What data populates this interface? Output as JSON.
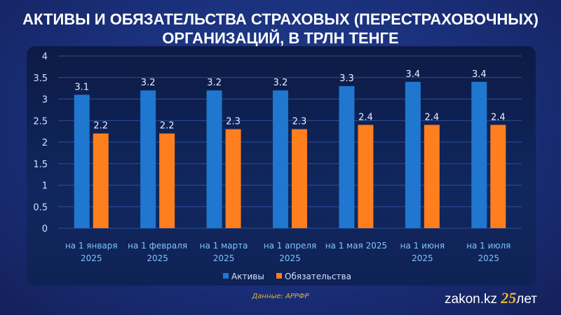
{
  "chart_data": {
    "type": "bar",
    "title": "АКТИВЫ И ОБЯЗАТЕЛЬСТВА СТРАХОВЫХ (ПЕРЕСТРАХОВОЧНЫХ) ОРГАНИЗАЦИЙ, В ТРЛН ТЕНГЕ",
    "categories": [
      [
        "на 1 января",
        "2025"
      ],
      [
        "на 1 февраля",
        "2025"
      ],
      [
        "на 1 марта",
        "2025"
      ],
      [
        "на 1 апреля",
        "2025"
      ],
      [
        "на 1 мая 2025",
        ""
      ],
      [
        "на 1 июня",
        "2025"
      ],
      [
        "на 1 июля",
        "2025"
      ]
    ],
    "series": [
      {
        "name": "Активы",
        "color": "#1f77d0",
        "values": [
          3.1,
          3.2,
          3.2,
          3.2,
          3.3,
          3.4,
          3.4
        ]
      },
      {
        "name": "Обязательства",
        "color": "#ff7f1e",
        "values": [
          2.2,
          2.2,
          2.3,
          2.3,
          2.4,
          2.4,
          2.4
        ]
      }
    ],
    "ylim": [
      0,
      4
    ],
    "yticks": [
      "0",
      "0.5",
      "1",
      "1.5",
      "2",
      "2.5",
      "3",
      "3.5",
      "4"
    ],
    "grid": true,
    "legend": "bottom"
  },
  "source": "Данные: АРРФР",
  "logo": {
    "text": "zakon.kz",
    "num": "25",
    "suffix": "лет"
  }
}
